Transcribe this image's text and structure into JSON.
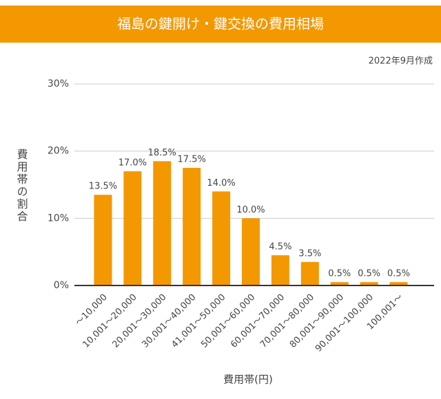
{
  "chart_data": {
    "type": "bar",
    "title": "福島の鍵開け・鍵交換の費用相場",
    "subtitle": "2022年9月作成",
    "y_label": "費用帯の割合",
    "x_label": "費用帯(円)",
    "categories": [
      "〜10,000",
      "10,001〜20,000",
      "20,001〜30,000",
      "30,001〜40,000",
      "41,001〜50,000",
      "50,001〜60,000",
      "60,001〜70,000",
      "70,001〜80,000",
      "80,001〜90,000",
      "90,001〜100,000",
      "100,001〜"
    ],
    "values": [
      13.5,
      17.0,
      18.5,
      17.5,
      14.0,
      10.0,
      4.5,
      3.5,
      0.5,
      0.5,
      0.5
    ],
    "value_labels": [
      "13.5%",
      "17.0%",
      "18.5%",
      "17.5%",
      "14.0%",
      "10.0%",
      "4.5%",
      "3.5%",
      "0.5%",
      "0.5%",
      "0.5%"
    ],
    "color": "#f39800",
    "ylim": [
      0,
      30
    ],
    "yticks": [
      {
        "value": 0,
        "label": "0%"
      },
      {
        "value": 10,
        "label": "10%"
      },
      {
        "value": 20,
        "label": "20%"
      },
      {
        "value": 30,
        "label": "30%"
      }
    ],
    "grid": true
  }
}
